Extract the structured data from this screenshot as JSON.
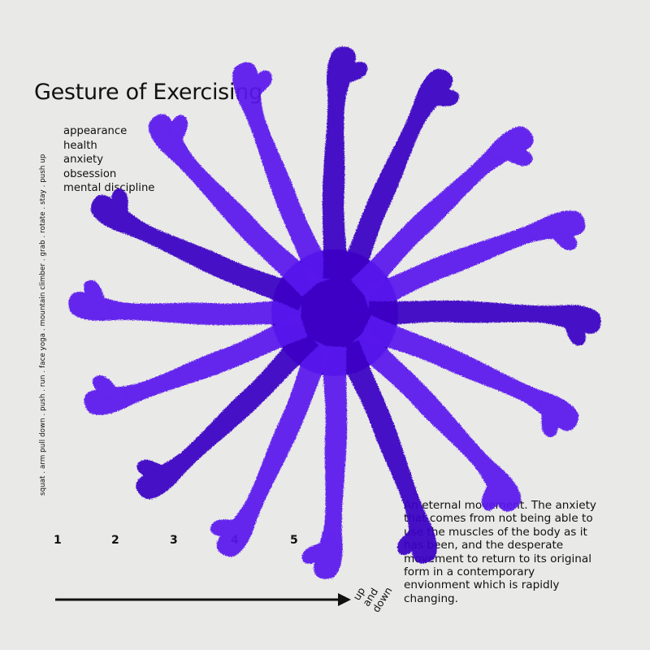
{
  "title": "Gesture of Exercising",
  "keywords": [
    "appearance",
    "health",
    "anxiety",
    "obsession",
    "mental discipline"
  ],
  "vertical_caption": "squat . arm pull down . push . run . face yoga . mountain climber . grab . rotate . stay . push up",
  "numbers": [
    "1",
    "2",
    "3",
    "4",
    "5"
  ],
  "arrow_label": [
    "up",
    "and",
    "down"
  ],
  "description": "An eternal movement. The anxiety that comes from not being able to use the muscles of the body as it has been, and the desperate movement to return to its original form in a contemporary envionment which is rapidly changing.",
  "colors": {
    "background": "#e9e9e7",
    "legs": "#5a14ee",
    "legs_dark": "#3c05c4",
    "text": "#111111"
  }
}
